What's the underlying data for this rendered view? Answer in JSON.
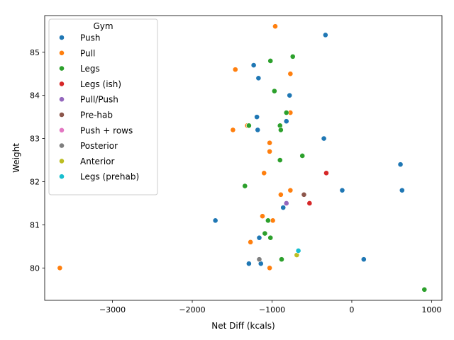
{
  "chart_data": {
    "type": "scatter",
    "xlabel": "Net Diff (kcals)",
    "ylabel": "Weight",
    "xlim": [
      -3850,
      1130
    ],
    "ylim": [
      79.25,
      85.85
    ],
    "xticks": [
      -3000,
      -2000,
      -1000,
      0,
      1000
    ],
    "yticks": [
      80,
      81,
      82,
      83,
      84,
      85
    ],
    "grid": false,
    "legend": {
      "title": "Gym",
      "placement": "top-left"
    },
    "series": [
      {
        "name": "Push",
        "color": "#1f77b4",
        "points": [
          [
            -330,
            85.4
          ],
          [
            -1230,
            84.7
          ],
          [
            -1170,
            84.4
          ],
          [
            -780,
            84.0
          ],
          [
            -1190,
            83.5
          ],
          [
            -820,
            83.4
          ],
          [
            -1180,
            83.2
          ],
          [
            -350,
            83.0
          ],
          [
            610,
            82.4
          ],
          [
            -120,
            81.8
          ],
          [
            630,
            81.8
          ],
          [
            -860,
            81.4
          ],
          [
            -1710,
            81.1
          ],
          [
            -1160,
            80.7
          ],
          [
            150,
            80.2
          ],
          [
            -1290,
            80.1
          ],
          [
            -1140,
            80.1
          ]
        ]
      },
      {
        "name": "Pull",
        "color": "#ff7f0e",
        "points": [
          [
            -960,
            85.6
          ],
          [
            -1460,
            84.6
          ],
          [
            -770,
            84.5
          ],
          [
            -770,
            83.6
          ],
          [
            -1310,
            83.3
          ],
          [
            -1490,
            83.2
          ],
          [
            -1030,
            82.9
          ],
          [
            -1030,
            82.7
          ],
          [
            -1100,
            82.2
          ],
          [
            -770,
            81.8
          ],
          [
            -890,
            81.7
          ],
          [
            -1120,
            81.2
          ],
          [
            -990,
            81.1
          ],
          [
            -1270,
            80.6
          ],
          [
            -3660,
            80.0
          ],
          [
            -1030,
            80.0
          ]
        ]
      },
      {
        "name": "Legs",
        "color": "#2ca02c",
        "points": [
          [
            -740,
            84.9
          ],
          [
            -1020,
            84.8
          ],
          [
            -970,
            84.1
          ],
          [
            -820,
            83.6
          ],
          [
            -900,
            83.3
          ],
          [
            -1290,
            83.3
          ],
          [
            -890,
            83.2
          ],
          [
            -620,
            82.6
          ],
          [
            -900,
            82.5
          ],
          [
            -1340,
            81.9
          ],
          [
            -1050,
            81.1
          ],
          [
            -1090,
            80.8
          ],
          [
            -1020,
            80.7
          ],
          [
            -880,
            80.2
          ],
          [
            910,
            79.5
          ]
        ]
      },
      {
        "name": "Legs (ish)",
        "color": "#d62728",
        "points": [
          [
            -320,
            82.2
          ],
          [
            -530,
            81.5
          ]
        ]
      },
      {
        "name": "Pull/Push",
        "color": "#9467bd",
        "points": [
          [
            -820,
            81.5
          ]
        ]
      },
      {
        "name": "Pre-hab",
        "color": "#8c564b",
        "points": [
          [
            -600,
            81.7
          ]
        ]
      },
      {
        "name": "Push + rows",
        "color": "#e377c2",
        "points": []
      },
      {
        "name": "Posterior",
        "color": "#7f7f7f",
        "points": [
          [
            -1160,
            80.2
          ]
        ]
      },
      {
        "name": "Anterior",
        "color": "#bcbd22",
        "points": [
          [
            -690,
            80.3
          ]
        ]
      },
      {
        "name": "Legs (prehab)",
        "color": "#17becf",
        "points": [
          [
            -670,
            80.4
          ]
        ]
      }
    ]
  }
}
